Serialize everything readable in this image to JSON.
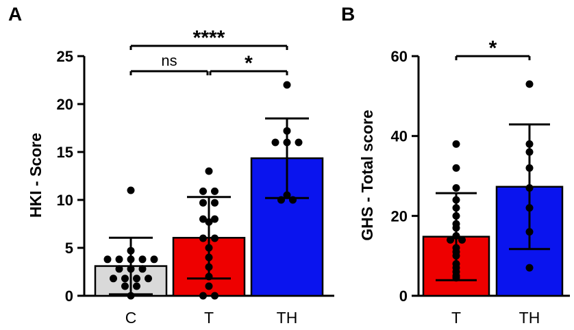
{
  "chart_data": [
    {
      "panel": "A",
      "type": "bar",
      "ylabel": "HKI - Score",
      "xlabel": "",
      "ylim": [
        0,
        25
      ],
      "yticks": [
        "0",
        "5",
        "10",
        "15",
        "20",
        "25"
      ],
      "yticks_values": [
        0,
        5,
        10,
        15,
        20,
        25
      ],
      "categories": [
        "C",
        "T",
        "TH"
      ],
      "colors": [
        "#d9d9d9",
        "#ee0000",
        "#0a14ee"
      ],
      "values": [
        3.1,
        6.05,
        14.35
      ],
      "sd": [
        2.95,
        4.25,
        4.15
      ],
      "points": [
        [
          0,
          1,
          1,
          1.8,
          1.8,
          1.8,
          1.8,
          2.8,
          2.8,
          2.8,
          3.8,
          3.8,
          3.8,
          3.8,
          3.8,
          4.7,
          11
        ],
        [
          0,
          0,
          1,
          2,
          3,
          4,
          5,
          6,
          6,
          7.7,
          8,
          8,
          9.7,
          9.7,
          10.9,
          10.9,
          13
        ],
        [
          10,
          10,
          10.5,
          16,
          16,
          16,
          17.2,
          22
        ]
      ],
      "significance": [
        {
          "from": 0,
          "to": 1,
          "label": "ns",
          "level": 1
        },
        {
          "from": 1,
          "to": 2,
          "label": "*",
          "level": 1
        },
        {
          "from": 0,
          "to": 2,
          "label": "****",
          "level": 2
        }
      ]
    },
    {
      "panel": "B",
      "type": "bar",
      "ylabel": "GHS - Total score",
      "xlabel": "",
      "ylim": [
        0,
        60
      ],
      "yticks": [
        "0",
        "20",
        "40",
        "60"
      ],
      "yticks_values": [
        0,
        20,
        40,
        60
      ],
      "categories": [
        "T",
        "TH"
      ],
      "colors": [
        "#ee0000",
        "#0a14ee"
      ],
      "values": [
        14.8,
        27.3
      ],
      "sd": [
        10.9,
        15.6
      ],
      "points": [
        [
          4.5,
          5,
          6,
          7,
          8,
          10,
          11,
          12,
          14,
          14,
          15,
          17,
          18,
          20,
          22,
          24,
          27,
          32,
          38
        ],
        [
          7,
          16,
          22,
          27,
          32,
          36,
          38,
          53
        ]
      ],
      "significance": [
        {
          "from": 0,
          "to": 1,
          "label": "*",
          "level": 1
        }
      ]
    }
  ]
}
